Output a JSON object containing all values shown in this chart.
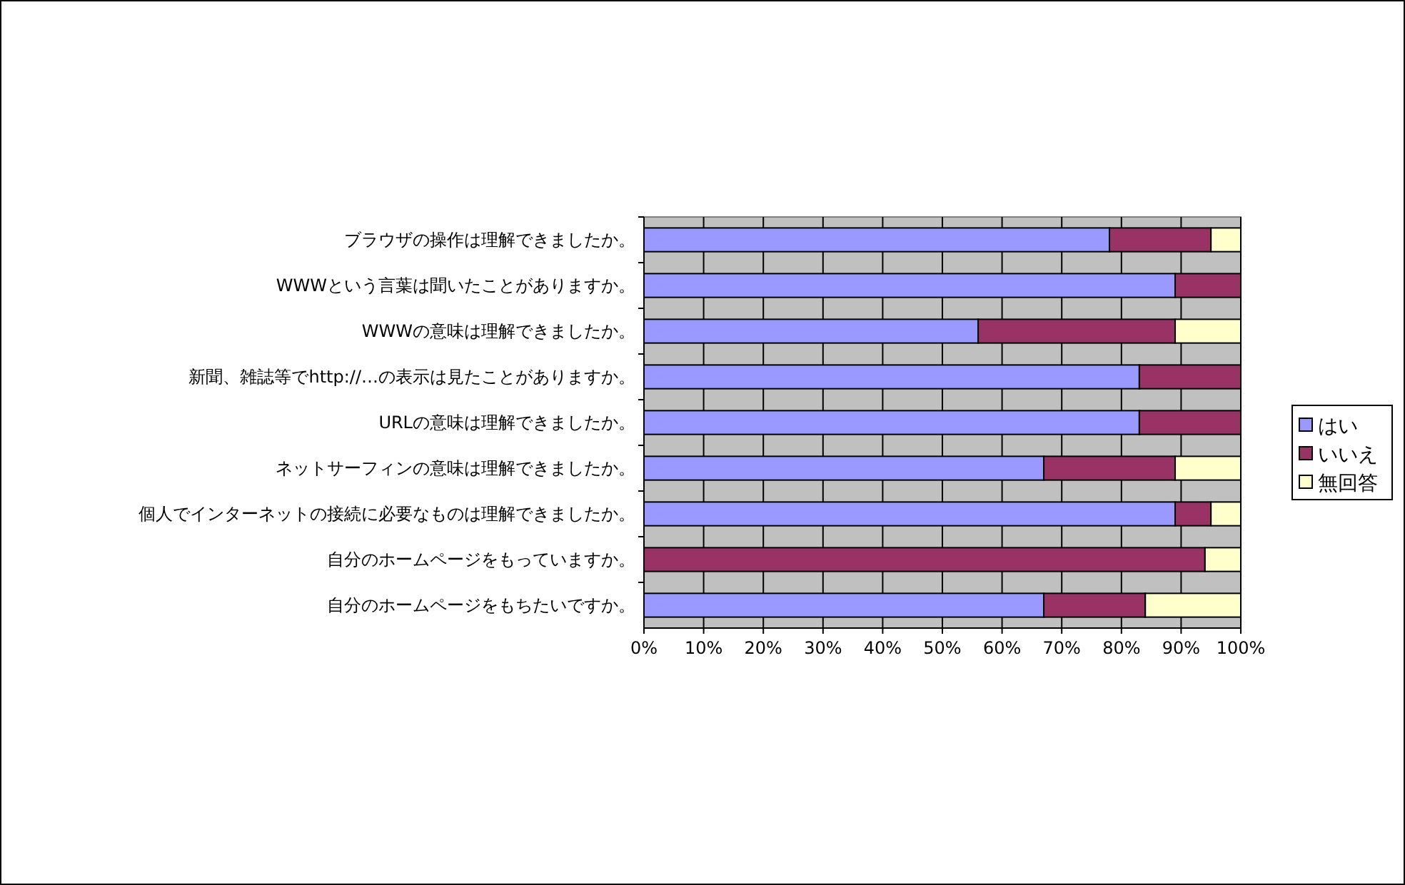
{
  "chart_data": {
    "type": "bar",
    "orientation": "horizontal",
    "stacked": true,
    "categories": [
      "ブラウザの操作は理解できましたか。",
      "WWWという言葉は聞いたことがありますか。",
      "WWWの意味は理解できましたか。",
      "新聞、雑誌等でhttp://…の表示は見たことがありますか。",
      "URLの意味は理解できましたか。",
      "ネットサーフィンの意味は理解できましたか。",
      "個人でインターネットの接続に必要なものは理解できましたか。",
      "自分のホームページをもっていますか。",
      "自分のホームページをもちたいですか。"
    ],
    "series": [
      {
        "name": "はい",
        "color": "#9999ff",
        "values": [
          78,
          89,
          56,
          83,
          83,
          67,
          89,
          0,
          67
        ]
      },
      {
        "name": "いいえ",
        "color": "#993366",
        "values": [
          17,
          11,
          33,
          17,
          17,
          22,
          6,
          94,
          17
        ]
      },
      {
        "name": "無回答",
        "color": "#ffffcc",
        "values": [
          5,
          0,
          11,
          0,
          0,
          11,
          5,
          6,
          16
        ]
      }
    ],
    "xlim": [
      0,
      100
    ],
    "xticks": [
      {
        "value": 0,
        "label": "0%"
      },
      {
        "value": 10,
        "label": "10%"
      },
      {
        "value": 20,
        "label": "20%"
      },
      {
        "value": 30,
        "label": "30%"
      },
      {
        "value": 40,
        "label": "40%"
      },
      {
        "value": 50,
        "label": "50%"
      },
      {
        "value": 60,
        "label": "60%"
      },
      {
        "value": 70,
        "label": "70%"
      },
      {
        "value": 80,
        "label": "80%"
      },
      {
        "value": 90,
        "label": "90%"
      },
      {
        "value": 100,
        "label": "100%"
      }
    ],
    "grid": "x",
    "legend": "right"
  }
}
